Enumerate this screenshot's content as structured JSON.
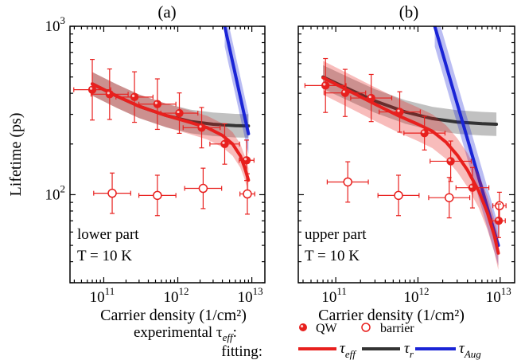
{
  "chart_data": [
    {
      "panel": "(a)",
      "type": "scatter",
      "annotation": "lower part",
      "temperature": "T = 10 K",
      "xlabel": "Carrier density (1/cm²)",
      "ylabel": "Lifetime (ps)",
      "xscale": "log",
      "yscale": "log",
      "xlim": [
        35000000000.0,
        15000000000000.0
      ],
      "ylim": [
        30,
        1000
      ],
      "x_ticks": [
        {
          "value": 100000000000.0,
          "base": "10",
          "exp": "11"
        },
        {
          "value": 1000000000000.0,
          "base": "10",
          "exp": "12"
        },
        {
          "value": 10000000000000.0,
          "base": "10",
          "exp": "13"
        }
      ],
      "y_ticks": [
        {
          "value": 100,
          "base": "10",
          "exp": "2"
        },
        {
          "value": 1000,
          "base": "10",
          "exp": "3"
        }
      ],
      "series": [
        {
          "name": "QW",
          "kind": "filled-marker",
          "color": "#e8201e",
          "points": [
            {
              "x": 70000000000.0,
              "y": 420,
              "xerr": 0.25,
              "yerr": 0.18
            },
            {
              "x": 120000000000.0,
              "y": 395,
              "xerr": 0.25,
              "yerr": 0.15
            },
            {
              "x": 260000000000.0,
              "y": 380,
              "xerr": 0.25,
              "yerr": 0.15
            },
            {
              "x": 530000000000.0,
              "y": 345,
              "xerr": 0.25,
              "yerr": 0.15
            },
            {
              "x": 1050000000000.0,
              "y": 305,
              "xerr": 0.25,
              "yerr": 0.12
            },
            {
              "x": 2100000000000.0,
              "y": 250,
              "xerr": 0.25,
              "yerr": 0.12
            },
            {
              "x": 4300000000000.0,
              "y": 200,
              "xerr": 0.2,
              "yerr": 0.12
            },
            {
              "x": 8500000000000.0,
              "y": 160,
              "xerr": 0.1,
              "yerr": 0.12
            }
          ]
        },
        {
          "name": "barrier",
          "kind": "open-marker",
          "color": "#e8201e",
          "points": [
            {
              "x": 130000000000.0,
              "y": 102,
              "xerr": 0.25,
              "yerr": 0.12
            },
            {
              "x": 530000000000.0,
              "y": 99,
              "xerr": 0.25,
              "yerr": 0.12
            },
            {
              "x": 2200000000000.0,
              "y": 109,
              "xerr": 0.25,
              "yerr": 0.12
            },
            {
              "x": 8700000000000.0,
              "y": 101,
              "xerr": 0.1,
              "yerr": 0.12
            }
          ]
        },
        {
          "name": "τr",
          "kind": "band-line",
          "color": "#333333",
          "points": [
            {
              "x": 70000000000.0,
              "y": 455
            },
            {
              "x": 150000000000.0,
              "y": 385
            },
            {
              "x": 300000000000.0,
              "y": 335
            },
            {
              "x": 700000000000.0,
              "y": 295
            },
            {
              "x": 1500000000000.0,
              "y": 272
            },
            {
              "x": 3000000000000.0,
              "y": 262
            },
            {
              "x": 6000000000000.0,
              "y": 257
            },
            {
              "x": 9000000000000.0,
              "y": 256
            }
          ],
          "band": 0.07
        },
        {
          "name": "τAug",
          "kind": "band-line",
          "color": "#1a24d6",
          "points": [
            {
              "x": 4300000000000.0,
              "y": 1000
            },
            {
              "x": 9000000000000.0,
              "y": 230
            }
          ],
          "band": 0.12
        },
        {
          "name": "τeff",
          "kind": "band-line",
          "color": "#e8201e",
          "points": [
            {
              "x": 70000000000.0,
              "y": 455
            },
            {
              "x": 150000000000.0,
              "y": 385
            },
            {
              "x": 300000000000.0,
              "y": 335
            },
            {
              "x": 700000000000.0,
              "y": 295
            },
            {
              "x": 1500000000000.0,
              "y": 268
            },
            {
              "x": 2500000000000.0,
              "y": 250
            },
            {
              "x": 4000000000000.0,
              "y": 225
            },
            {
              "x": 5500000000000.0,
              "y": 200
            },
            {
              "x": 7000000000000.0,
              "y": 170
            },
            {
              "x": 8000000000000.0,
              "y": 145
            },
            {
              "x": 9000000000000.0,
              "y": 122
            }
          ],
          "band": 0.07
        }
      ]
    },
    {
      "panel": "(b)",
      "type": "scatter",
      "annotation": "upper part",
      "temperature": "T = 10 K",
      "xlabel": "Carrier density (1/cm²)",
      "ylabel": "",
      "xscale": "log",
      "yscale": "log",
      "xlim": [
        35000000000.0,
        15000000000000.0
      ],
      "ylim": [
        30,
        1000
      ],
      "x_ticks": [
        {
          "value": 100000000000.0,
          "base": "10",
          "exp": "11"
        },
        {
          "value": 1000000000000.0,
          "base": "10",
          "exp": "12"
        },
        {
          "value": 10000000000000.0,
          "base": "10",
          "exp": "13"
        }
      ],
      "y_ticks": [
        {
          "value": 100,
          "base": "",
          "exp": ""
        },
        {
          "value": 1000,
          "base": "",
          "exp": ""
        }
      ],
      "series": [
        {
          "name": "QW",
          "kind": "filled-marker",
          "color": "#e8201e",
          "points": [
            {
              "x": 75000000000.0,
              "y": 445,
              "xerr": 0.25,
              "yerr": 0.16
            },
            {
              "x": 130000000000.0,
              "y": 402,
              "xerr": 0.25,
              "yerr": 0.14
            },
            {
              "x": 270000000000.0,
              "y": 375,
              "xerr": 0.25,
              "yerr": 0.14
            },
            {
              "x": 600000000000.0,
              "y": 310,
              "xerr": 0.25,
              "yerr": 0.12
            },
            {
              "x": 1200000000000.0,
              "y": 232,
              "xerr": 0.25,
              "yerr": 0.1
            },
            {
              "x": 2500000000000.0,
              "y": 158,
              "xerr": 0.25,
              "yerr": 0.12
            },
            {
              "x": 4600000000000.0,
              "y": 110,
              "xerr": 0.2,
              "yerr": 0.12
            },
            {
              "x": 9600000000000.0,
              "y": 70,
              "xerr": 0.08,
              "yerr": 0.1
            }
          ]
        },
        {
          "name": "barrier",
          "kind": "open-marker",
          "color": "#e8201e",
          "points": [
            {
              "x": 140000000000.0,
              "y": 119,
              "xerr": 0.25,
              "yerr": 0.12
            },
            {
              "x": 580000000000.0,
              "y": 99,
              "xerr": 0.25,
              "yerr": 0.12
            },
            {
              "x": 2400000000000.0,
              "y": 96,
              "xerr": 0.25,
              "yerr": 0.12
            },
            {
              "x": 9800000000000.0,
              "y": 86,
              "xerr": 0.08,
              "yerr": 0.08
            }
          ]
        },
        {
          "name": "τr",
          "kind": "band-line",
          "color": "#333333",
          "points": [
            {
              "x": 70000000000.0,
              "y": 500
            },
            {
              "x": 150000000000.0,
              "y": 420
            },
            {
              "x": 300000000000.0,
              "y": 360
            },
            {
              "x": 700000000000.0,
              "y": 310
            },
            {
              "x": 1500000000000.0,
              "y": 283
            },
            {
              "x": 3000000000000.0,
              "y": 270
            },
            {
              "x": 6000000000000.0,
              "y": 264
            },
            {
              "x": 9000000000000.0,
              "y": 262
            }
          ],
          "band": 0.07
        },
        {
          "name": "τAug",
          "kind": "band-line",
          "color": "#1a24d6",
          "points": [
            {
              "x": 1600000000000.0,
              "y": 1000
            },
            {
              "x": 9500000000000.0,
              "y": 50
            }
          ],
          "band": 0.12
        },
        {
          "name": "τeff",
          "kind": "band-line",
          "color": "#e8201e",
          "points": [
            {
              "x": 70000000000.0,
              "y": 495
            },
            {
              "x": 150000000000.0,
              "y": 410
            },
            {
              "x": 300000000000.0,
              "y": 345
            },
            {
              "x": 600000000000.0,
              "y": 292
            },
            {
              "x": 1000000000000.0,
              "y": 262
            },
            {
              "x": 1500000000000.0,
              "y": 238
            },
            {
              "x": 2200000000000.0,
              "y": 205
            },
            {
              "x": 3000000000000.0,
              "y": 172
            },
            {
              "x": 4000000000000.0,
              "y": 140
            },
            {
              "x": 5500000000000.0,
              "y": 105
            },
            {
              "x": 7000000000000.0,
              "y": 78
            },
            {
              "x": 8500000000000.0,
              "y": 57
            },
            {
              "x": 9500000000000.0,
              "y": 45
            }
          ],
          "band": 0.1
        }
      ]
    }
  ],
  "legend": {
    "experimental_label": "experimental τ",
    "experimental_sub": "eff",
    "experimental_suffix": ":",
    "fitting_label": "fitting:",
    "qw_label": "QW",
    "barrier_label": "barrier",
    "eff_symbol": "τ",
    "eff_sub": "eff",
    "r_symbol": "τ",
    "r_sub": "r",
    "aug_symbol": "τ",
    "aug_sub": "Aug"
  }
}
